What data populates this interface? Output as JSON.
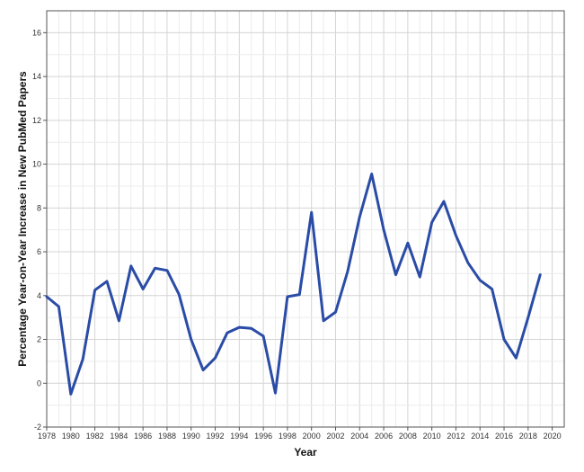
{
  "chart_data": {
    "type": "line",
    "title": "",
    "xlabel": "Year",
    "ylabel": "Percentage Year-on-Year Increase in New PubMed Papers",
    "xlim": [
      1978,
      2021
    ],
    "ylim": [
      -2,
      17
    ],
    "x_ticks": [
      1978,
      1980,
      1982,
      1984,
      1986,
      1988,
      1990,
      1992,
      1994,
      1996,
      1998,
      2000,
      2002,
      2004,
      2006,
      2008,
      2010,
      2012,
      2014,
      2016,
      2018,
      2020
    ],
    "y_ticks": [
      -2,
      0,
      2,
      4,
      6,
      8,
      10,
      12,
      14,
      16
    ],
    "grid": true,
    "legend": "none",
    "series": [
      {
        "color": "#2a4ca6",
        "x": [
          1978,
          1979,
          1980,
          1981,
          1982,
          1983,
          1984,
          1985,
          1986,
          1987,
          1988,
          1989,
          1990,
          1991,
          1992,
          1993,
          1994,
          1995,
          1996,
          1997,
          1998,
          1999,
          2000,
          2001,
          2002,
          2003,
          2004,
          2005,
          2006,
          2007,
          2008,
          2009,
          2010,
          2011,
          2012,
          2013,
          2014,
          2015,
          2016,
          2017,
          2018,
          2019
        ],
        "y": [
          3.95,
          3.5,
          -0.5,
          1.1,
          4.25,
          4.65,
          2.85,
          5.35,
          4.3,
          5.25,
          5.15,
          4.05,
          2.0,
          0.6,
          1.15,
          2.3,
          2.55,
          2.5,
          2.15,
          -0.45,
          3.95,
          4.05,
          7.8,
          2.85,
          3.25,
          5.1,
          7.6,
          9.55,
          7.0,
          4.95,
          6.4,
          4.85,
          7.35,
          8.3,
          6.75,
          5.5,
          4.7,
          4.3,
          2.0,
          1.15,
          3.0,
          4.95
        ]
      }
    ]
  }
}
